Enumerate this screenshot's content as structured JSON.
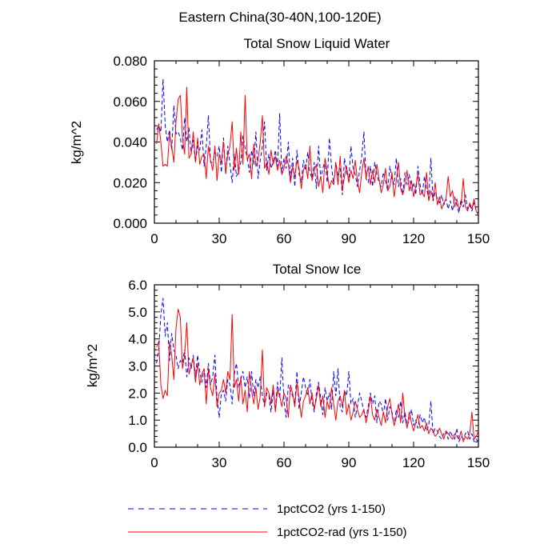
{
  "figure_title": "Eastern China(30-40N,100-120E)",
  "chart_data": [
    {
      "type": "line",
      "title": "Total Snow Liquid Water",
      "xlabel": "",
      "ylabel": "kg/m^2",
      "xlim": [
        0,
        150
      ],
      "ylim": [
        0.0,
        0.08
      ],
      "xticks": [
        "0",
        "30",
        "60",
        "90",
        "120",
        "150"
      ],
      "yticks": [
        "0.000",
        "0.020",
        "0.040",
        "0.060",
        "0.080"
      ],
      "grid": false,
      "legend_position": "bottom",
      "series": [
        {
          "name": "1pctCO2 (yrs 1-150)",
          "color": "#0000ff",
          "dash": "dashed",
          "x_start": 1,
          "values": [
            0.046,
            0.048,
            0.045,
            0.071,
            0.048,
            0.04,
            0.046,
            0.036,
            0.058,
            0.044,
            0.045,
            0.042,
            0.036,
            0.052,
            0.04,
            0.047,
            0.034,
            0.041,
            0.03,
            0.038,
            0.036,
            0.046,
            0.028,
            0.038,
            0.053,
            0.03,
            0.03,
            0.035,
            0.033,
            0.038,
            0.025,
            0.042,
            0.024,
            0.038,
            0.029,
            0.02,
            0.034,
            0.023,
            0.026,
            0.03,
            0.043,
            0.037,
            0.032,
            0.025,
            0.036,
            0.029,
            0.045,
            0.022,
            0.031,
            0.038,
            0.05,
            0.026,
            0.034,
            0.027,
            0.03,
            0.036,
            0.028,
            0.054,
            0.024,
            0.032,
            0.027,
            0.04,
            0.022,
            0.032,
            0.018,
            0.036,
            0.024,
            0.02,
            0.031,
            0.026,
            0.035,
            0.025,
            0.022,
            0.03,
            0.017,
            0.038,
            0.022,
            0.027,
            0.031,
            0.02,
            0.042,
            0.028,
            0.019,
            0.03,
            0.023,
            0.027,
            0.014,
            0.032,
            0.025,
            0.021,
            0.038,
            0.027,
            0.024,
            0.018,
            0.026,
            0.033,
            0.045,
            0.022,
            0.02,
            0.028,
            0.018,
            0.03,
            0.024,
            0.02,
            0.018,
            0.025,
            0.021,
            0.016,
            0.028,
            0.022,
            0.019,
            0.032,
            0.018,
            0.022,
            0.014,
            0.025,
            0.019,
            0.024,
            0.016,
            0.02,
            0.014,
            0.028,
            0.019,
            0.014,
            0.023,
            0.017,
            0.012,
            0.032,
            0.011,
            0.015,
            0.012,
            0.01,
            0.014,
            0.009,
            0.012,
            0.007,
            0.011,
            0.006,
            0.013,
            0.009,
            0.005,
            0.012,
            0.008,
            0.014,
            0.007,
            0.009,
            0.006,
            0.01,
            0.006,
            0.005
          ]
        },
        {
          "name": "1pctCO2-rad (yrs 1-150)",
          "color": "#ff0000",
          "dash": "solid",
          "x_start": 1,
          "values": [
            0.039,
            0.049,
            0.04,
            0.028,
            0.029,
            0.028,
            0.044,
            0.038,
            0.03,
            0.05,
            0.061,
            0.063,
            0.042,
            0.034,
            0.067,
            0.032,
            0.034,
            0.045,
            0.03,
            0.042,
            0.029,
            0.033,
            0.034,
            0.022,
            0.038,
            0.031,
            0.026,
            0.038,
            0.021,
            0.034,
            0.03,
            0.04,
            0.025,
            0.034,
            0.038,
            0.05,
            0.026,
            0.037,
            0.024,
            0.045,
            0.029,
            0.063,
            0.031,
            0.034,
            0.022,
            0.039,
            0.028,
            0.031,
            0.04,
            0.053,
            0.027,
            0.03,
            0.024,
            0.036,
            0.029,
            0.033,
            0.026,
            0.031,
            0.024,
            0.027,
            0.033,
            0.029,
            0.02,
            0.028,
            0.023,
            0.031,
            0.027,
            0.017,
            0.026,
            0.029,
            0.022,
            0.038,
            0.021,
            0.026,
            0.029,
            0.018,
            0.023,
            0.015,
            0.032,
            0.025,
            0.017,
            0.021,
            0.019,
            0.03,
            0.019,
            0.033,
            0.016,
            0.023,
            0.028,
            0.02,
            0.026,
            0.022,
            0.031,
            0.021,
            0.015,
            0.025,
            0.032,
            0.022,
            0.028,
            0.019,
            0.026,
            0.02,
            0.029,
            0.022,
            0.015,
            0.019,
            0.027,
            0.016,
            0.018,
            0.025,
            0.013,
            0.021,
            0.03,
            0.017,
            0.014,
            0.019,
            0.026,
            0.016,
            0.021,
            0.013,
            0.018,
            0.024,
            0.014,
            0.015,
            0.013,
            0.025,
            0.011,
            0.016,
            0.012,
            0.02,
            0.009,
            0.013,
            0.007,
            0.01,
            0.012,
            0.023,
            0.013,
            0.016,
            0.008,
            0.012,
            0.007,
            0.009,
            0.022,
            0.008,
            0.006,
            0.01,
            0.007,
            0.012,
            0.006,
            0.004
          ]
        }
      ]
    },
    {
      "type": "line",
      "title": "Total Snow Ice",
      "xlabel": "",
      "ylabel": "kg/m^2",
      "xlim": [
        0,
        150
      ],
      "ylim": [
        0.0,
        6.0
      ],
      "xticks": [
        "0",
        "30",
        "60",
        "90",
        "120",
        "150"
      ],
      "yticks": [
        "0.0",
        "1.0",
        "2.0",
        "3.0",
        "4.0",
        "5.0",
        "6.0"
      ],
      "grid": false,
      "series": [
        {
          "name": "1pctCO2 (yrs 1-150)",
          "color": "#0000ff",
          "dash": "dashed",
          "x_start": 1,
          "values": [
            3.1,
            3.6,
            4.9,
            5.5,
            4.1,
            4.6,
            3.2,
            4.2,
            3.6,
            3.4,
            2.9,
            3.2,
            3.1,
            3.6,
            2.6,
            3.3,
            2.9,
            3.4,
            2.6,
            3.4,
            2.8,
            2.4,
            2.9,
            2.2,
            3.1,
            2.3,
            2.6,
            3.4,
            1.8,
            1.1,
            2.0,
            2.1,
            1.7,
            2.5,
            2.3,
            1.6,
            2.7,
            3.1,
            2.2,
            2.5,
            2.8,
            2.2,
            2.6,
            1.8,
            2.8,
            1.9,
            2.5,
            2.2,
            2.6,
            1.9,
            1.5,
            2.0,
            1.9,
            1.3,
            2.1,
            1.4,
            2.4,
            1.8,
            3.3,
            1.7,
            1.1,
            2.3,
            2.1,
            1.9,
            1.6,
            2.8,
            1.4,
            2.0,
            2.6,
            2.2,
            1.9,
            2.5,
            1.7,
            1.3,
            2.0,
            2.4,
            1.8,
            1.2,
            2.2,
            1.7,
            2.0,
            1.4,
            2.8,
            1.9,
            2.9,
            1.5,
            1.3,
            2.1,
            1.9,
            2.8,
            1.6,
            1.8,
            1.1,
            1.5,
            2.0,
            1.7,
            1.3,
            1.1,
            1.5,
            2.0,
            1.6,
            1.9,
            0.9,
            1.7,
            1.6,
            1.2,
            1.8,
            1.0,
            1.5,
            1.3,
            0.8,
            1.4,
            1.1,
            1.7,
            0.9,
            1.3,
            0.8,
            1.0,
            1.4,
            0.8,
            1.0,
            0.7,
            1.2,
            0.9,
            1.1,
            0.6,
            0.8,
            1.7,
            0.5,
            0.7,
            0.6,
            0.4,
            0.3,
            0.5,
            0.6,
            0.3,
            0.6,
            0.4,
            0.3,
            0.7,
            0.2,
            0.4,
            0.3,
            0.5,
            0.6,
            0.3,
            0.5,
            0.2,
            0.3,
            0.2
          ]
        },
        {
          "name": "1pctCO2-rad (yrs 1-150)",
          "color": "#ff0000",
          "dash": "solid",
          "x_start": 1,
          "values": [
            3.7,
            3.9,
            2.3,
            1.8,
            2.1,
            1.9,
            3.9,
            3.4,
            2.5,
            4.4,
            5.1,
            4.8,
            2.9,
            3.4,
            4.6,
            2.7,
            3.0,
            3.3,
            2.4,
            3.1,
            2.3,
            2.7,
            2.9,
            1.6,
            2.9,
            2.2,
            1.9,
            2.7,
            1.5,
            2.0,
            2.1,
            2.5,
            2.0,
            2.8,
            2.5,
            4.9,
            2.2,
            2.5,
            1.7,
            2.6,
            1.6,
            2.1,
            1.3,
            2.8,
            2.1,
            1.6,
            2.2,
            1.4,
            1.9,
            3.6,
            1.5,
            2.2,
            2.0,
            1.6,
            2.3,
            1.3,
            2.1,
            1.9,
            1.5,
            2.0,
            1.8,
            1.1,
            2.3,
            2.0,
            1.5,
            2.4,
            1.8,
            1.1,
            1.7,
            1.9,
            2.2,
            1.6,
            2.0,
            1.4,
            1.8,
            2.3,
            1.5,
            1.9,
            1.1,
            1.7,
            1.4,
            2.2,
            1.6,
            1.0,
            1.7,
            1.9,
            1.5,
            2.1,
            1.2,
            1.6,
            1.0,
            1.3,
            1.7,
            1.4,
            1.1,
            1.2,
            1.4,
            0.9,
            1.3,
            1.9,
            1.2,
            1.0,
            1.4,
            1.1,
            0.8,
            1.3,
            0.9,
            1.5,
            1.8,
            1.2,
            0.8,
            1.1,
            1.6,
            0.9,
            2.0,
            1.1,
            0.7,
            1.3,
            0.9,
            0.6,
            0.9,
            1.2,
            0.7,
            0.8,
            0.6,
            0.9,
            0.5,
            0.7,
            0.6,
            0.4,
            0.5,
            0.7,
            0.5,
            0.3,
            0.6,
            0.5,
            0.4,
            0.3,
            0.5,
            0.4,
            0.3,
            0.6,
            0.2,
            0.4,
            0.3,
            0.5,
            1.3,
            0.3,
            0.4,
            0.6
          ]
        }
      ]
    }
  ],
  "legend": [
    {
      "label": "1pctCO2 (yrs 1-150)",
      "color": "#0000ff",
      "dash": "dashed"
    },
    {
      "label": "1pctCO2-rad (yrs 1-150)",
      "color": "#ff0000",
      "dash": "solid"
    }
  ]
}
